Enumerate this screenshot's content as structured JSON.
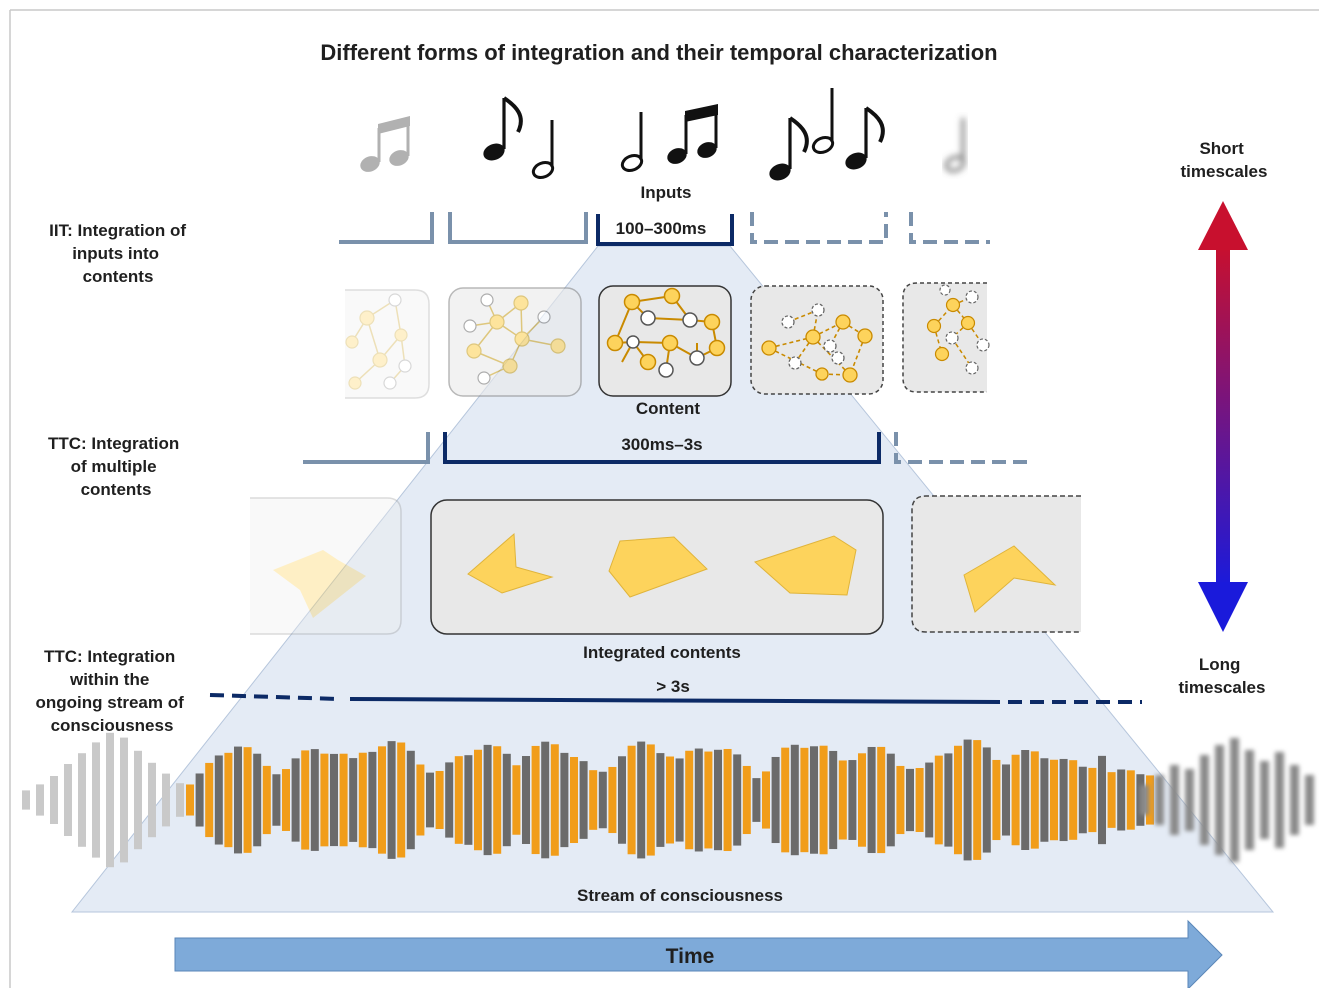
{
  "title": "Different forms of integration and their temporal characterization",
  "timescale": {
    "short": [
      "Short",
      "timescales"
    ],
    "long": [
      "Long",
      "timescales"
    ]
  },
  "levels": {
    "iit": {
      "label": [
        "IIT: Integration of",
        "inputs into",
        "contents"
      ],
      "window_label": "100–300ms",
      "top_label": "Inputs",
      "bottom_label": "Content"
    },
    "ttc_contents": {
      "label": [
        "TTC: Integration",
        "of multiple",
        "contents"
      ],
      "window_label": "300ms–3s",
      "bottom_label": "Integrated contents"
    },
    "ttc_stream": {
      "label": [
        "TTC: Integration",
        "within the",
        "ongoing stream of",
        "consciousness"
      ],
      "window_label": "> 3s",
      "bottom_label": "Stream of consciousness"
    }
  },
  "time_label": "Time",
  "colors": {
    "accent_yellow": "#fdd35c",
    "waveform_orange": "#f19d1a",
    "waveform_gray": "#6b6b6b",
    "window_navy": "#0c2a66",
    "window_steel": "#7a91ab",
    "pyramid_fill": "#e4ebf5",
    "arrow_top": "#c8102e",
    "arrow_bottom": "#1a1adb",
    "time_arrow": "#7eaad9"
  }
}
